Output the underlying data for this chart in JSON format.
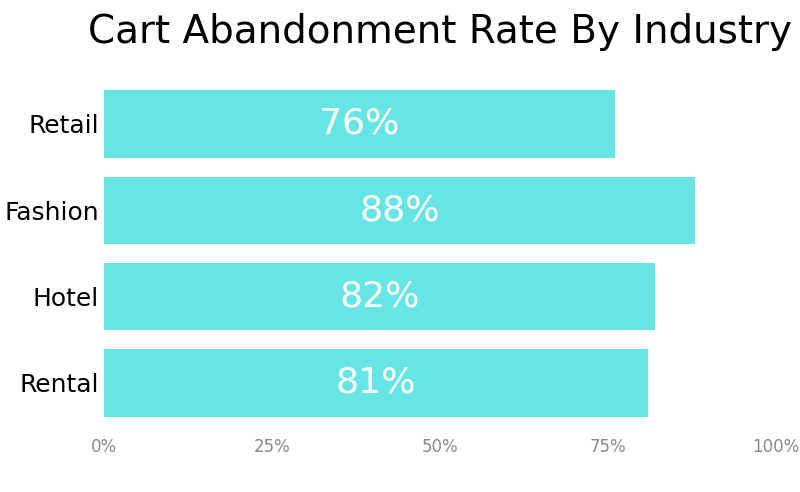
{
  "title": "Cart Abandonment Rate By Industry",
  "categories": [
    "Retail",
    "Fashion",
    "Hotel",
    "Rental"
  ],
  "values": [
    76,
    88,
    82,
    81
  ],
  "bar_color": "#67E5E5",
  "label_color": "#FFFFFF",
  "title_fontsize": 28,
  "label_fontsize": 26,
  "category_fontsize": 18,
  "tick_fontsize": 12,
  "xlim": [
    0,
    100
  ],
  "xticks": [
    0,
    25,
    50,
    75,
    100
  ],
  "xtick_labels": [
    "0%",
    "25%",
    "50%",
    "75%",
    "100%"
  ],
  "background_color": "#FFFFFF",
  "bar_height": 0.78
}
